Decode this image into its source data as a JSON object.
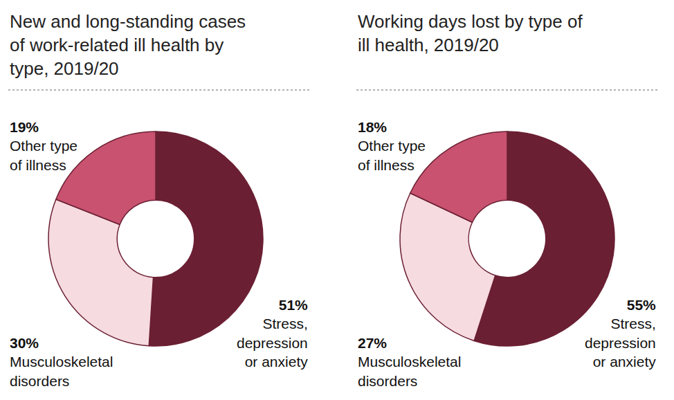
{
  "chart_data": [
    {
      "type": "pie",
      "title": "New and long-standing cases\nof work-related ill health by\ntype, 2019/20",
      "categories": [
        "Stress,\ndepression\nor anxiety",
        "Musculoskeletal\ndisorders",
        "Other type\nof illness"
      ],
      "values": [
        51,
        30,
        19
      ],
      "value_labels": [
        "51%",
        "30%",
        "19%"
      ],
      "colors": [
        "#6b1f33",
        "#f6dbe0",
        "#c8526f"
      ],
      "data_labels": true
    },
    {
      "type": "pie",
      "title": "Working days lost by type of\nill health, 2019/20",
      "categories": [
        "Stress,\ndepression\nor anxiety",
        "Musculoskeletal\ndisorders",
        "Other type\nof illness"
      ],
      "values": [
        55,
        27,
        18
      ],
      "value_labels": [
        "55%",
        "27%",
        "18%"
      ],
      "colors": [
        "#6b1f33",
        "#f6dbe0",
        "#c8526f"
      ],
      "data_labels": true
    }
  ]
}
